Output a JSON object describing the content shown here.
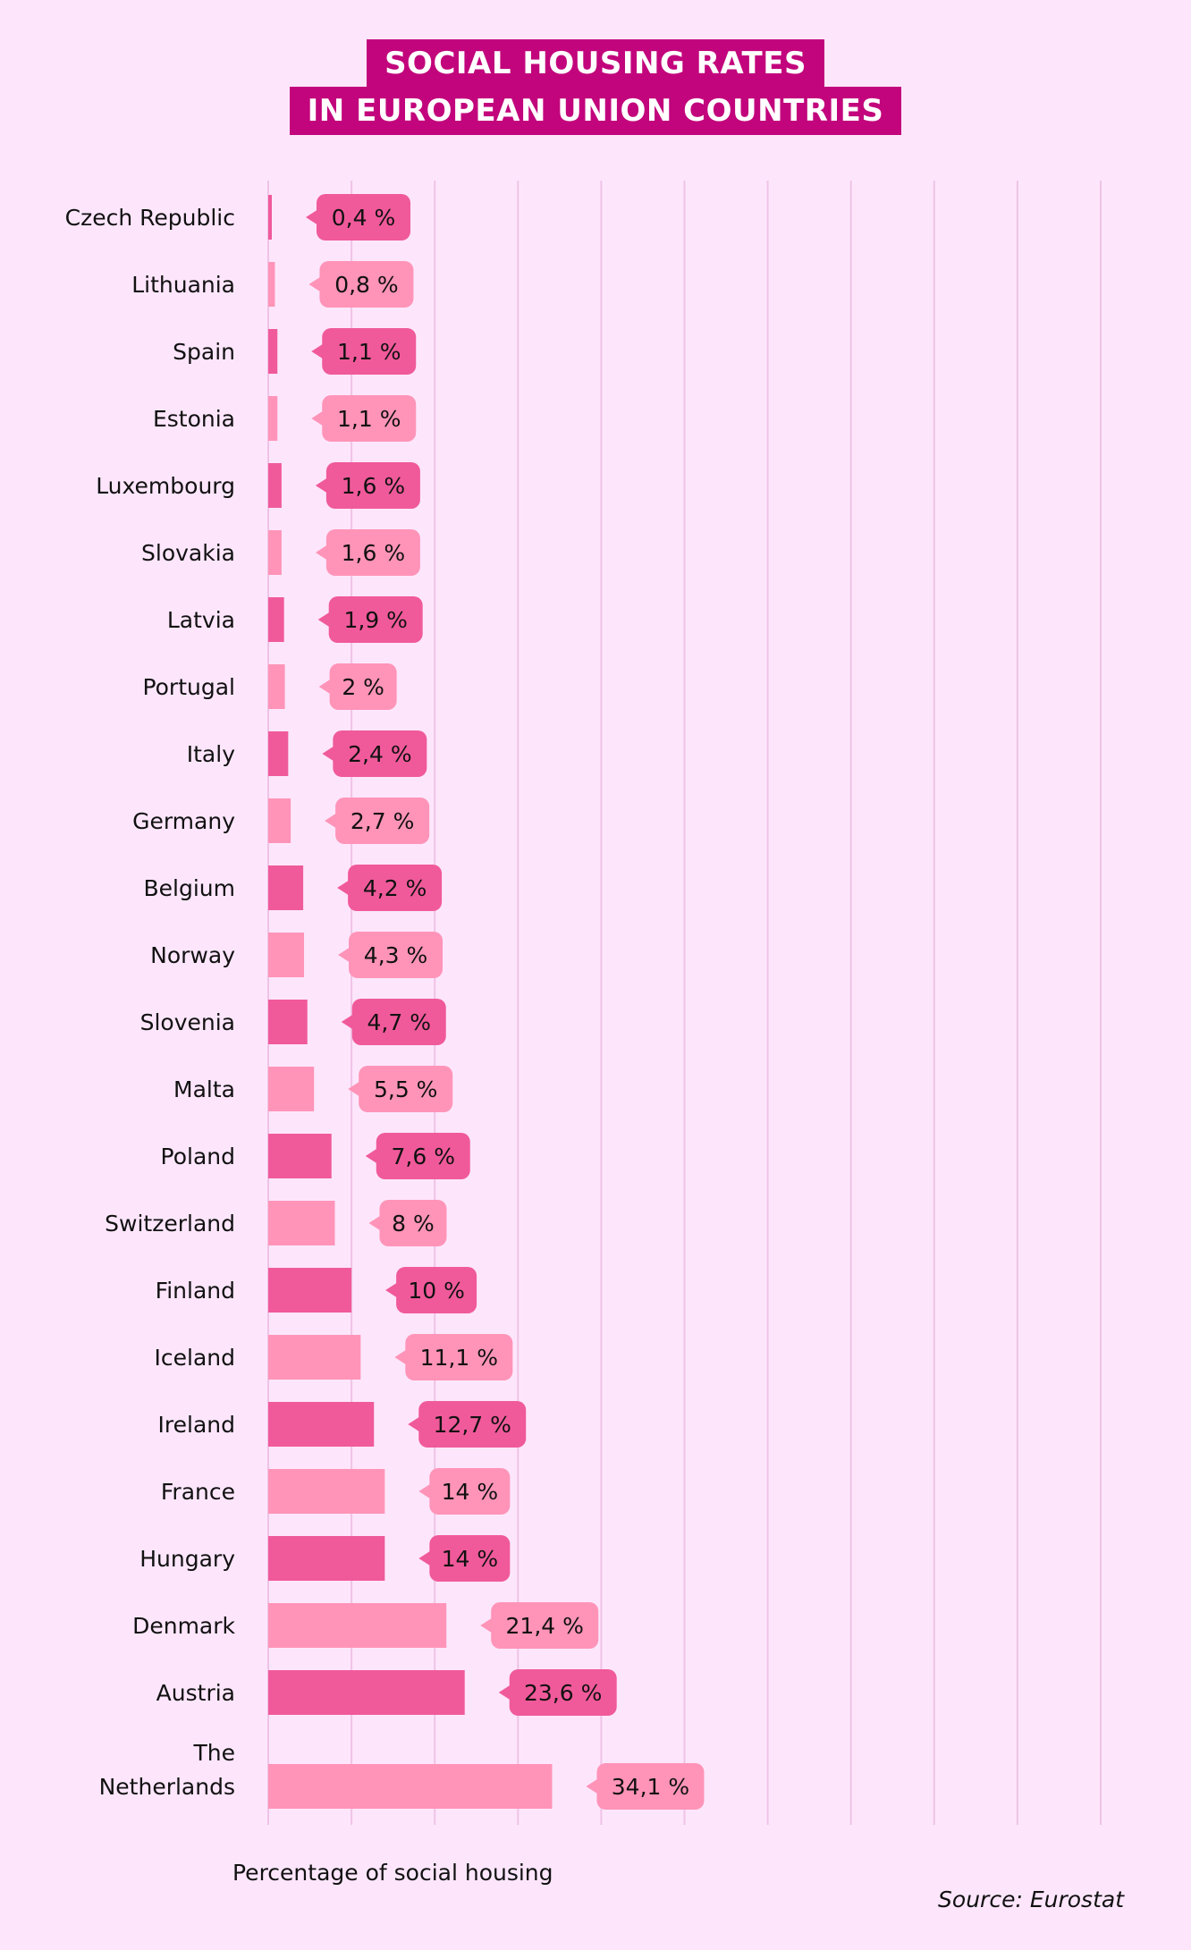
{
  "chart_data": {
    "type": "bar",
    "orientation": "horizontal",
    "title": [
      "SOCIAL HOUSING RATES",
      "IN EUROPEAN UNION COUNTRIES"
    ],
    "xlabel": "Percentage of social housing",
    "source": "Source: Eurostat",
    "xlim": [
      0,
      100
    ],
    "grid": true,
    "categories": [
      "Czech Republic",
      "Lithuania",
      "Spain",
      "Estonia",
      "Luxembourg",
      "Slovakia",
      "Latvia",
      "Portugal",
      "Italy",
      "Germany",
      "Belgium",
      "Norway",
      "Slovenia",
      "Malta",
      "Poland",
      "Switzerland",
      "Finland",
      "Iceland",
      "Ireland",
      "France",
      "Hungary",
      "Denmark",
      "Austria",
      "The Netherlands"
    ],
    "values": [
      0.4,
      0.8,
      1.1,
      1.1,
      1.6,
      1.6,
      1.9,
      2,
      2.4,
      2.7,
      4.2,
      4.3,
      4.7,
      5.5,
      7.6,
      8,
      10,
      11.1,
      12.7,
      14,
      14,
      21.4,
      23.6,
      34.1
    ],
    "data_labels": [
      "0,4 %",
      "0,8 %",
      "1,1 %",
      "1,1 %",
      "1,6 %",
      "1,6 %",
      "1,9 %",
      "2 %",
      "2,4 %",
      "2,7 %",
      "4,2 %",
      "4,3 %",
      "4,7 %",
      "5,5 %",
      "7,6 %",
      "8 %",
      "10 %",
      "11,1 %",
      "12,7 %",
      "14 %",
      "14 %",
      "21,4 %",
      "23,6 %",
      "34,1 %"
    ],
    "colors": [
      "#f05a9a",
      "#ff94b8"
    ],
    "title_color": "#c2057c",
    "background": "#fde6fc"
  }
}
